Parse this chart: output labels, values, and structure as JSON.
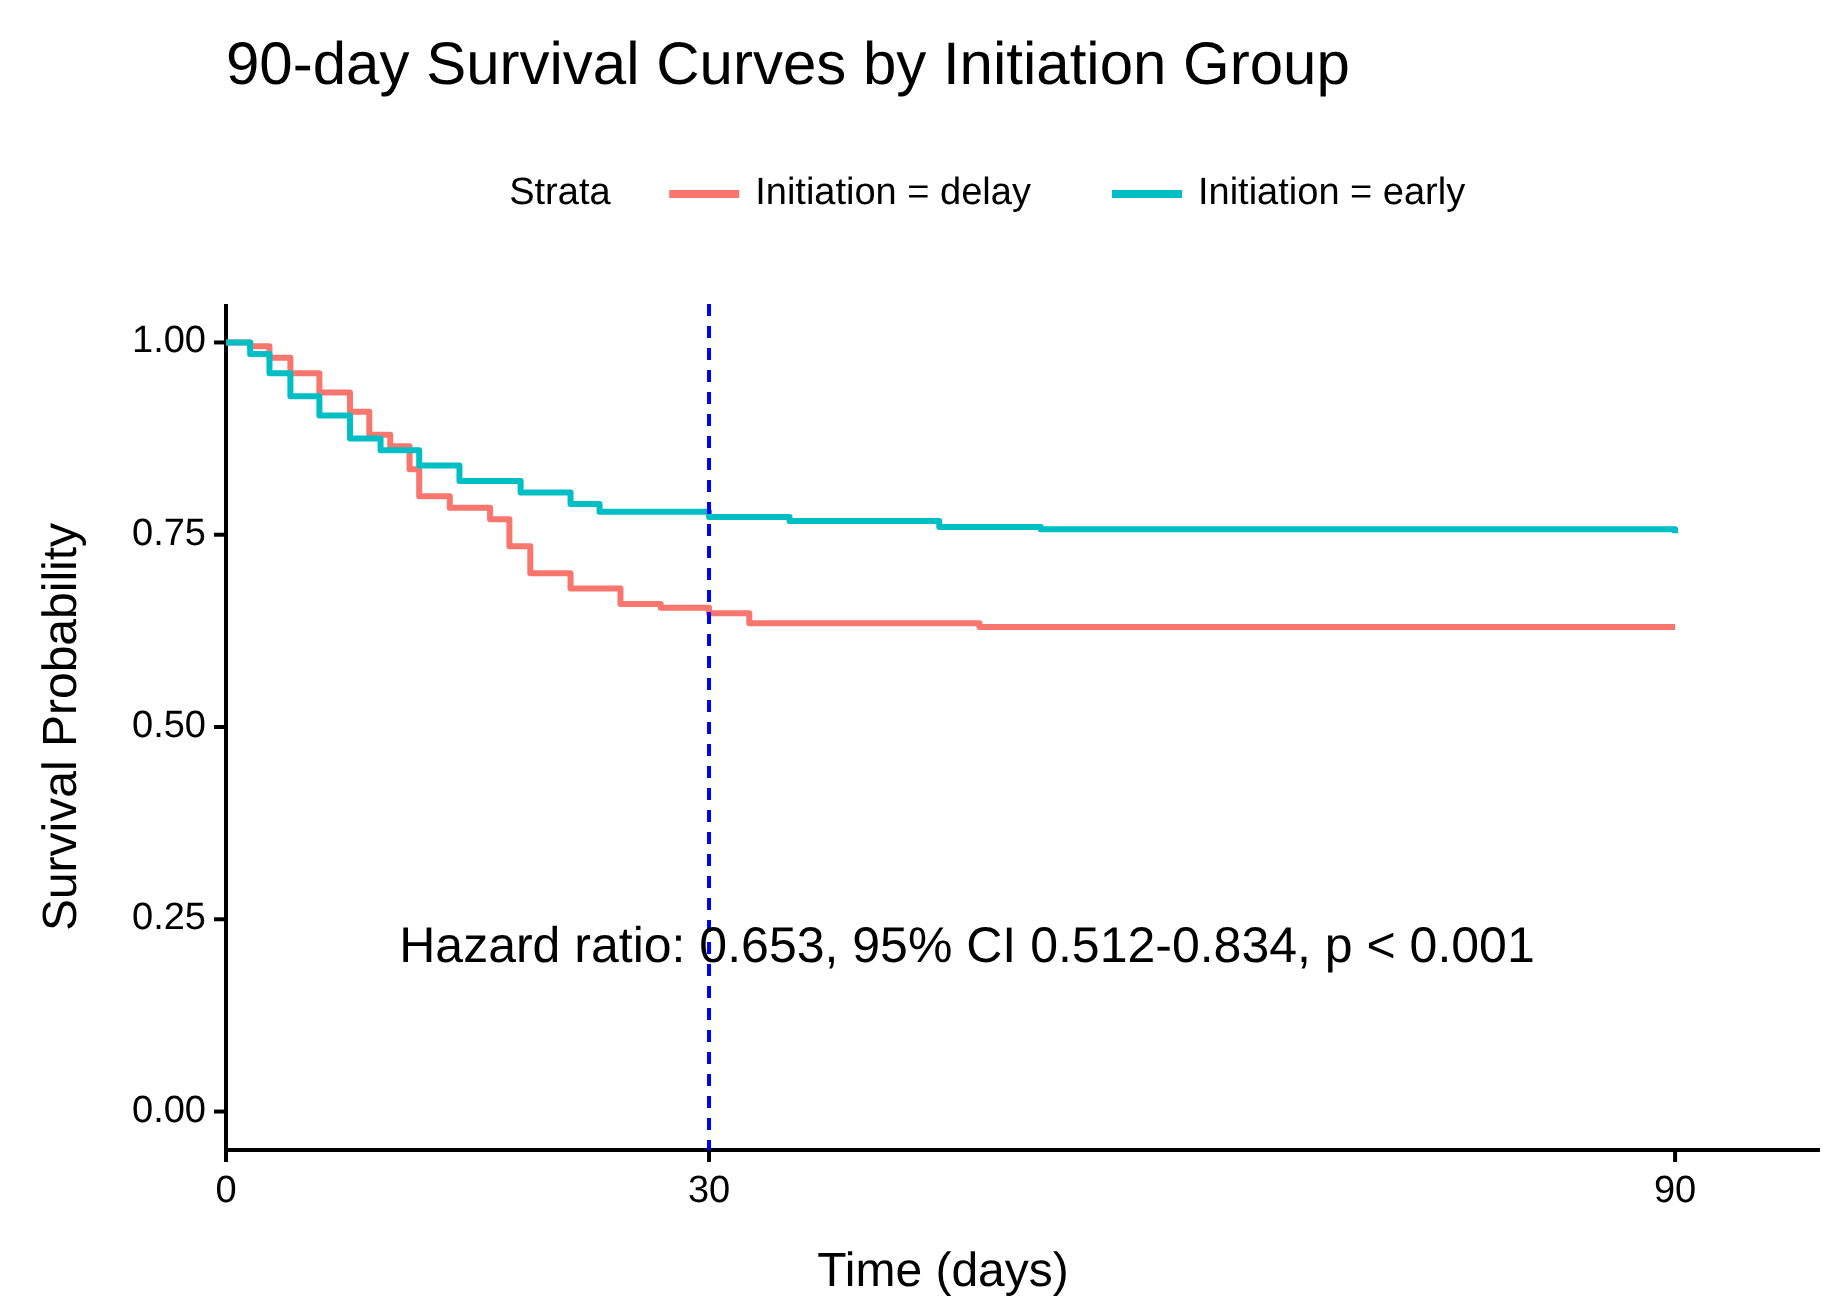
{
  "chart_data": {
    "type": "step",
    "title": "90-day Survival Curves by Initiation Group",
    "xlabel": "Time (days)",
    "ylabel": "Survival Probability",
    "legend_title": "Strata",
    "legend": "top",
    "grid": false,
    "line_style": "solid",
    "xlim": [
      0,
      99
    ],
    "xticks": [
      0,
      30,
      90
    ],
    "ylim": [
      -0.05,
      1.05
    ],
    "yticks": [
      {
        "value": 0,
        "label": "0.00"
      },
      {
        "value": 0.25,
        "label": "0.25"
      },
      {
        "value": 0.5,
        "label": "0.50"
      },
      {
        "value": 0.75,
        "label": "0.75"
      },
      {
        "value": 1,
        "label": "1.00"
      }
    ],
    "series": [
      {
        "name": "Initiation = delay",
        "color": "#f8766d",
        "x": [
          0,
          1.5,
          2.7,
          4,
          5.8,
          7.7,
          8.9,
          10.2,
          11.4,
          12,
          13.9,
          16.4,
          17.6,
          18.9,
          21.4,
          24.5,
          27,
          30,
          32.5,
          39.4,
          46.8,
          90
        ],
        "values": [
          1,
          0.995,
          0.98,
          0.96,
          0.935,
          0.91,
          0.88,
          0.865,
          0.835,
          0.8,
          0.785,
          0.77,
          0.735,
          0.7,
          0.68,
          0.66,
          0.655,
          0.648,
          0.635,
          0.635,
          0.63,
          0.63
        ]
      },
      {
        "name": "Initiation = early",
        "color": "#00bfc4",
        "x": [
          0,
          1.5,
          2.7,
          4,
          5.8,
          7.7,
          9.6,
          12,
          14.5,
          18.3,
          21.4,
          23.2,
          27,
          30,
          35,
          44.3,
          50.6,
          89,
          90
        ],
        "values": [
          1,
          0.985,
          0.96,
          0.93,
          0.905,
          0.875,
          0.86,
          0.84,
          0.82,
          0.805,
          0.79,
          0.78,
          0.78,
          0.773,
          0.768,
          0.76,
          0.757,
          0.757,
          0.752
        ]
      }
    ],
    "ref_lines": [
      {
        "axis": "x",
        "value": 30,
        "color": "#0000ff",
        "line_style": "dashed"
      }
    ],
    "annotations": [
      "Hazard ratio: 0.653, 95% CI 0.512-0.834, p < 0.001"
    ]
  }
}
